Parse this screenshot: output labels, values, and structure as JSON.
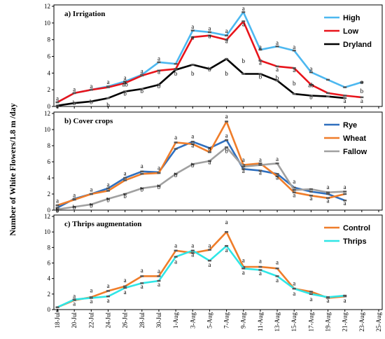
{
  "ylabel": "Number of White Flowers/1.8 m /day",
  "dates": [
    "18-Jul",
    "20-Jul",
    "22-Jul",
    "24-Jul",
    "26-Jul",
    "28-Jul",
    "30-Jul",
    "1-Aug",
    "3-Aug",
    "5-Aug",
    "7-Aug",
    "9-Aug",
    "11-Aug",
    "13-Aug",
    "15-Aug",
    "17-Aug",
    "19-Aug",
    "21-Aug",
    "23-Aug",
    "25-Aug"
  ],
  "chart_data": [
    {
      "type": "line",
      "title": "a) Irrigation",
      "ylim": [
        0,
        12
      ],
      "yticks": [
        "0",
        "2",
        "4",
        "6",
        "8",
        "10",
        "12"
      ],
      "legend_position": "top-right",
      "series": [
        {
          "name": "High",
          "color": "#4db8f0",
          "values": [
            0.5,
            1.6,
            2.0,
            2.4,
            3.0,
            3.8,
            5.3,
            5.1,
            9.1,
            8.9,
            8.5,
            11.3,
            6.8,
            7.2,
            6.7,
            4.1,
            3.2,
            2.3,
            2.9,
            null
          ]
        },
        {
          "name": "Low",
          "color": "#e8141b",
          "values": [
            0.5,
            1.6,
            2.0,
            2.3,
            2.8,
            3.7,
            4.3,
            4.5,
            8.3,
            8.5,
            8.0,
            10.2,
            5.5,
            4.8,
            4.6,
            2.6,
            1.6,
            1.3,
            1.1,
            null
          ]
        },
        {
          "name": "Dryland",
          "color": "#000000",
          "values": [
            0.1,
            0.4,
            0.6,
            1.0,
            1.8,
            2.1,
            2.6,
            4.4,
            5.0,
            4.5,
            5.7,
            3.9,
            3.9,
            3.1,
            1.5,
            1.3,
            1.2,
            1.0,
            null,
            null
          ]
        }
      ],
      "annotations": [
        {
          "i": 0,
          "v": 0.7,
          "t": "a"
        },
        {
          "i": 0,
          "v": -0.2,
          "t": "a"
        },
        {
          "i": 1,
          "v": 1.8,
          "t": "a"
        },
        {
          "i": 1,
          "v": 0.15,
          "t": "b"
        },
        {
          "i": 2,
          "v": 2.2,
          "t": "a"
        },
        {
          "i": 2,
          "v": 0.3,
          "t": "b"
        },
        {
          "i": 3,
          "v": 2.7,
          "t": "a"
        },
        {
          "i": 3,
          "v": -0.1,
          "t": "b"
        },
        {
          "i": 4,
          "v": 3.2,
          "t": "a"
        },
        {
          "i": 4,
          "v": 2.4,
          "t": "ab"
        },
        {
          "i": 4,
          "v": 1.3,
          "t": "b"
        },
        {
          "i": 5,
          "v": 4.0,
          "t": "a"
        },
        {
          "i": 5,
          "v": 1.6,
          "t": "b"
        },
        {
          "i": 6,
          "v": 5.5,
          "t": "a"
        },
        {
          "i": 6,
          "v": 3.9,
          "t": "a"
        },
        {
          "i": 6,
          "v": 2.2,
          "t": "b"
        },
        {
          "i": 7,
          "v": 3.7,
          "t": "b"
        },
        {
          "i": 8,
          "v": 9.3,
          "t": "a"
        },
        {
          "i": 8,
          "v": 8.0,
          "t": "a"
        },
        {
          "i": 8,
          "v": 3.7,
          "t": "b"
        },
        {
          "i": 9,
          "v": 9.1,
          "t": "a"
        },
        {
          "i": 9,
          "v": 8.2,
          "t": "a"
        },
        {
          "i": 9,
          "v": 4.2,
          "t": "b"
        },
        {
          "i": 10,
          "v": 8.8,
          "t": "a"
        },
        {
          "i": 10,
          "v": 7.6,
          "t": "a"
        },
        {
          "i": 10,
          "v": 3.7,
          "t": "b"
        },
        {
          "i": 11,
          "v": 11.5,
          "t": "a"
        },
        {
          "i": 11,
          "v": 9.6,
          "t": "a"
        },
        {
          "i": 11,
          "v": 5.2,
          "t": "b"
        },
        {
          "i": 12,
          "v": 6.9,
          "t": "a"
        },
        {
          "i": 12,
          "v": 5.0,
          "t": "a"
        },
        {
          "i": 12,
          "v": 3.3,
          "t": "b"
        },
        {
          "i": 13,
          "v": 7.4,
          "t": "a"
        },
        {
          "i": 13,
          "v": 4.2,
          "t": "a"
        },
        {
          "i": 13,
          "v": 3.2,
          "t": "b"
        },
        {
          "i": 14,
          "v": 6.9,
          "t": "a"
        },
        {
          "i": 14,
          "v": 4.1,
          "t": "a"
        },
        {
          "i": 14,
          "v": 2.5,
          "t": "b"
        },
        {
          "i": 15,
          "v": 4.3,
          "t": "a"
        },
        {
          "i": 15,
          "v": 2.3,
          "t": "ab"
        },
        {
          "i": 15,
          "v": 0.9,
          "t": "b"
        },
        {
          "i": 17,
          "v": 0.4,
          "t": "a"
        },
        {
          "i": 18,
          "v": 0.4,
          "t": "a"
        },
        {
          "i": 18,
          "v": 2.7,
          "t": "a"
        },
        {
          "i": 18,
          "v": 1.6,
          "t": "b"
        }
      ]
    },
    {
      "type": "line",
      "title": "b) Cover crops",
      "ylim": [
        0,
        12
      ],
      "yticks": [
        "0",
        "2",
        "4",
        "6",
        "8",
        "10",
        "12"
      ],
      "legend_position": "top-right",
      "series": [
        {
          "name": "Rye",
          "color": "#2f6fbe",
          "values": [
            0.3,
            1.4,
            2.0,
            2.7,
            4.0,
            4.8,
            4.7,
            7.6,
            8.5,
            7.7,
            8.7,
            5.1,
            4.9,
            4.5,
            2.8,
            2.3,
            2.0,
            1.2,
            null,
            null
          ]
        },
        {
          "name": "Wheat",
          "color": "#ef7d2a",
          "values": [
            0.6,
            1.3,
            2.0,
            2.4,
            3.7,
            4.5,
            4.6,
            8.4,
            8.2,
            7.2,
            11.0,
            5.6,
            5.8,
            4.2,
            2.2,
            1.8,
            1.5,
            2.0,
            null,
            null
          ]
        },
        {
          "name": "Fallow",
          "color": "#a0a0a0",
          "values": [
            0.1,
            0.4,
            0.7,
            1.4,
            2.0,
            2.7,
            3.0,
            4.5,
            5.7,
            6.1,
            7.8,
            5.4,
            5.6,
            5.8,
            2.5,
            2.6,
            2.2,
            2.3,
            null,
            null
          ]
        }
      ],
      "annotations": [
        {
          "i": 0,
          "v": 0.9,
          "t": "a"
        },
        {
          "i": 0,
          "v": -0.3,
          "t": "b"
        },
        {
          "i": 1,
          "v": 1.6,
          "t": "a"
        },
        {
          "i": 1,
          "v": 0.1,
          "t": "b"
        },
        {
          "i": 2,
          "v": 2.3,
          "t": "a"
        },
        {
          "i": 2,
          "v": 0.3,
          "t": "b"
        },
        {
          "i": 3,
          "v": 2.9,
          "t": "a"
        },
        {
          "i": 3,
          "v": 1.0,
          "t": "b"
        },
        {
          "i": 4,
          "v": 4.3,
          "t": "a"
        },
        {
          "i": 4,
          "v": 1.5,
          "t": "b"
        },
        {
          "i": 5,
          "v": 5.2,
          "t": "a"
        },
        {
          "i": 5,
          "v": 2.3,
          "t": "b"
        },
        {
          "i": 6,
          "v": 5.0,
          "t": "a"
        },
        {
          "i": 6,
          "v": 2.6,
          "t": "b"
        },
        {
          "i": 7,
          "v": 8.8,
          "t": "a"
        },
        {
          "i": 7,
          "v": 4.1,
          "t": "b"
        },
        {
          "i": 8,
          "v": 8.9,
          "t": "a"
        },
        {
          "i": 8,
          "v": 7.8,
          "t": "a"
        },
        {
          "i": 8,
          "v": 5.3,
          "t": "b"
        },
        {
          "i": 9,
          "v": 7.4,
          "t": "a"
        },
        {
          "i": 9,
          "v": 5.7,
          "t": "a"
        },
        {
          "i": 10,
          "v": 11.4,
          "t": "a"
        },
        {
          "i": 10,
          "v": 9.0,
          "t": "a"
        },
        {
          "i": 10,
          "v": 7.1,
          "t": "b"
        },
        {
          "i": 11,
          "v": 6.0,
          "t": "a"
        },
        {
          "i": 11,
          "v": 4.6,
          "t": "a"
        },
        {
          "i": 12,
          "v": 6.0,
          "t": "a"
        },
        {
          "i": 12,
          "v": 4.4,
          "t": "a"
        },
        {
          "i": 13,
          "v": 6.1,
          "t": "a"
        },
        {
          "i": 13,
          "v": 3.8,
          "t": "a"
        },
        {
          "i": 14,
          "v": 3.3,
          "t": "a"
        },
        {
          "i": 14,
          "v": 1.6,
          "t": "a"
        },
        {
          "i": 15,
          "v": 1.2,
          "t": "a"
        },
        {
          "i": 16,
          "v": 2.6,
          "t": "a"
        },
        {
          "i": 16,
          "v": 0.9,
          "t": "a"
        },
        {
          "i": 17,
          "v": 2.6,
          "t": "a"
        },
        {
          "i": 17,
          "v": 0.6,
          "t": "a"
        }
      ]
    },
    {
      "type": "line",
      "title": "c) Thrips augmentation",
      "ylim": [
        0,
        12
      ],
      "yticks": [
        "0",
        "2",
        "4",
        "6",
        "8",
        "10",
        "12"
      ],
      "legend_position": "top-right",
      "series": [
        {
          "name": "Control",
          "color": "#ef7d2a",
          "values": [
            0.3,
            1.2,
            1.6,
            2.4,
            3.0,
            4.3,
            4.3,
            7.6,
            7.3,
            7.7,
            10.0,
            5.5,
            5.5,
            5.3,
            2.7,
            2.3,
            1.5,
            1.7,
            null,
            null
          ]
        },
        {
          "name": "Thrips",
          "color": "#2fe6e6",
          "values": [
            0.3,
            1.3,
            1.5,
            1.7,
            2.8,
            3.4,
            3.7,
            6.8,
            7.6,
            6.3,
            8.2,
            5.3,
            5.1,
            4.3,
            2.7,
            2.0,
            1.6,
            1.8,
            null,
            null
          ]
        }
      ],
      "annotations": [
        {
          "i": 0,
          "v": -0.3,
          "t": "a"
        },
        {
          "i": 1,
          "v": 1.5,
          "t": "a"
        },
        {
          "i": 1,
          "v": 0.5,
          "t": "a"
        },
        {
          "i": 2,
          "v": 2.2,
          "t": "a"
        },
        {
          "i": 2,
          "v": 0.8,
          "t": "a"
        },
        {
          "i": 3,
          "v": 2.8,
          "t": "a"
        },
        {
          "i": 3,
          "v": 0.9,
          "t": "a"
        },
        {
          "i": 4,
          "v": 3.5,
          "t": "a"
        },
        {
          "i": 4,
          "v": 2.0,
          "t": "a"
        },
        {
          "i": 5,
          "v": 4.8,
          "t": "a"
        },
        {
          "i": 5,
          "v": 2.7,
          "t": "a"
        },
        {
          "i": 6,
          "v": 4.7,
          "t": "a"
        },
        {
          "i": 6,
          "v": 3.0,
          "t": "a"
        },
        {
          "i": 7,
          "v": 8.0,
          "t": "a"
        },
        {
          "i": 7,
          "v": 5.9,
          "t": "a"
        },
        {
          "i": 8,
          "v": 8.0,
          "t": "a"
        },
        {
          "i": 8,
          "v": 6.8,
          "t": "a"
        },
        {
          "i": 9,
          "v": 8.0,
          "t": "a"
        },
        {
          "i": 9,
          "v": 5.5,
          "t": "a"
        },
        {
          "i": 10,
          "v": 11.0,
          "t": "a"
        },
        {
          "i": 10,
          "v": 7.4,
          "t": "a"
        },
        {
          "i": 11,
          "v": 6.1,
          "t": "a"
        },
        {
          "i": 11,
          "v": 4.5,
          "t": "a"
        },
        {
          "i": 12,
          "v": 6.0,
          "t": "a"
        },
        {
          "i": 12,
          "v": 4.4,
          "t": "a"
        },
        {
          "i": 13,
          "v": 5.8,
          "t": "a"
        },
        {
          "i": 13,
          "v": 3.5,
          "t": "a"
        },
        {
          "i": 14,
          "v": 3.1,
          "t": "a"
        },
        {
          "i": 14,
          "v": 1.8,
          "t": "a"
        },
        {
          "i": 15,
          "v": 1.1,
          "t": "a"
        },
        {
          "i": 16,
          "v": 0.9,
          "t": "a"
        },
        {
          "i": 17,
          "v": 0.9,
          "t": "a"
        }
      ]
    }
  ]
}
